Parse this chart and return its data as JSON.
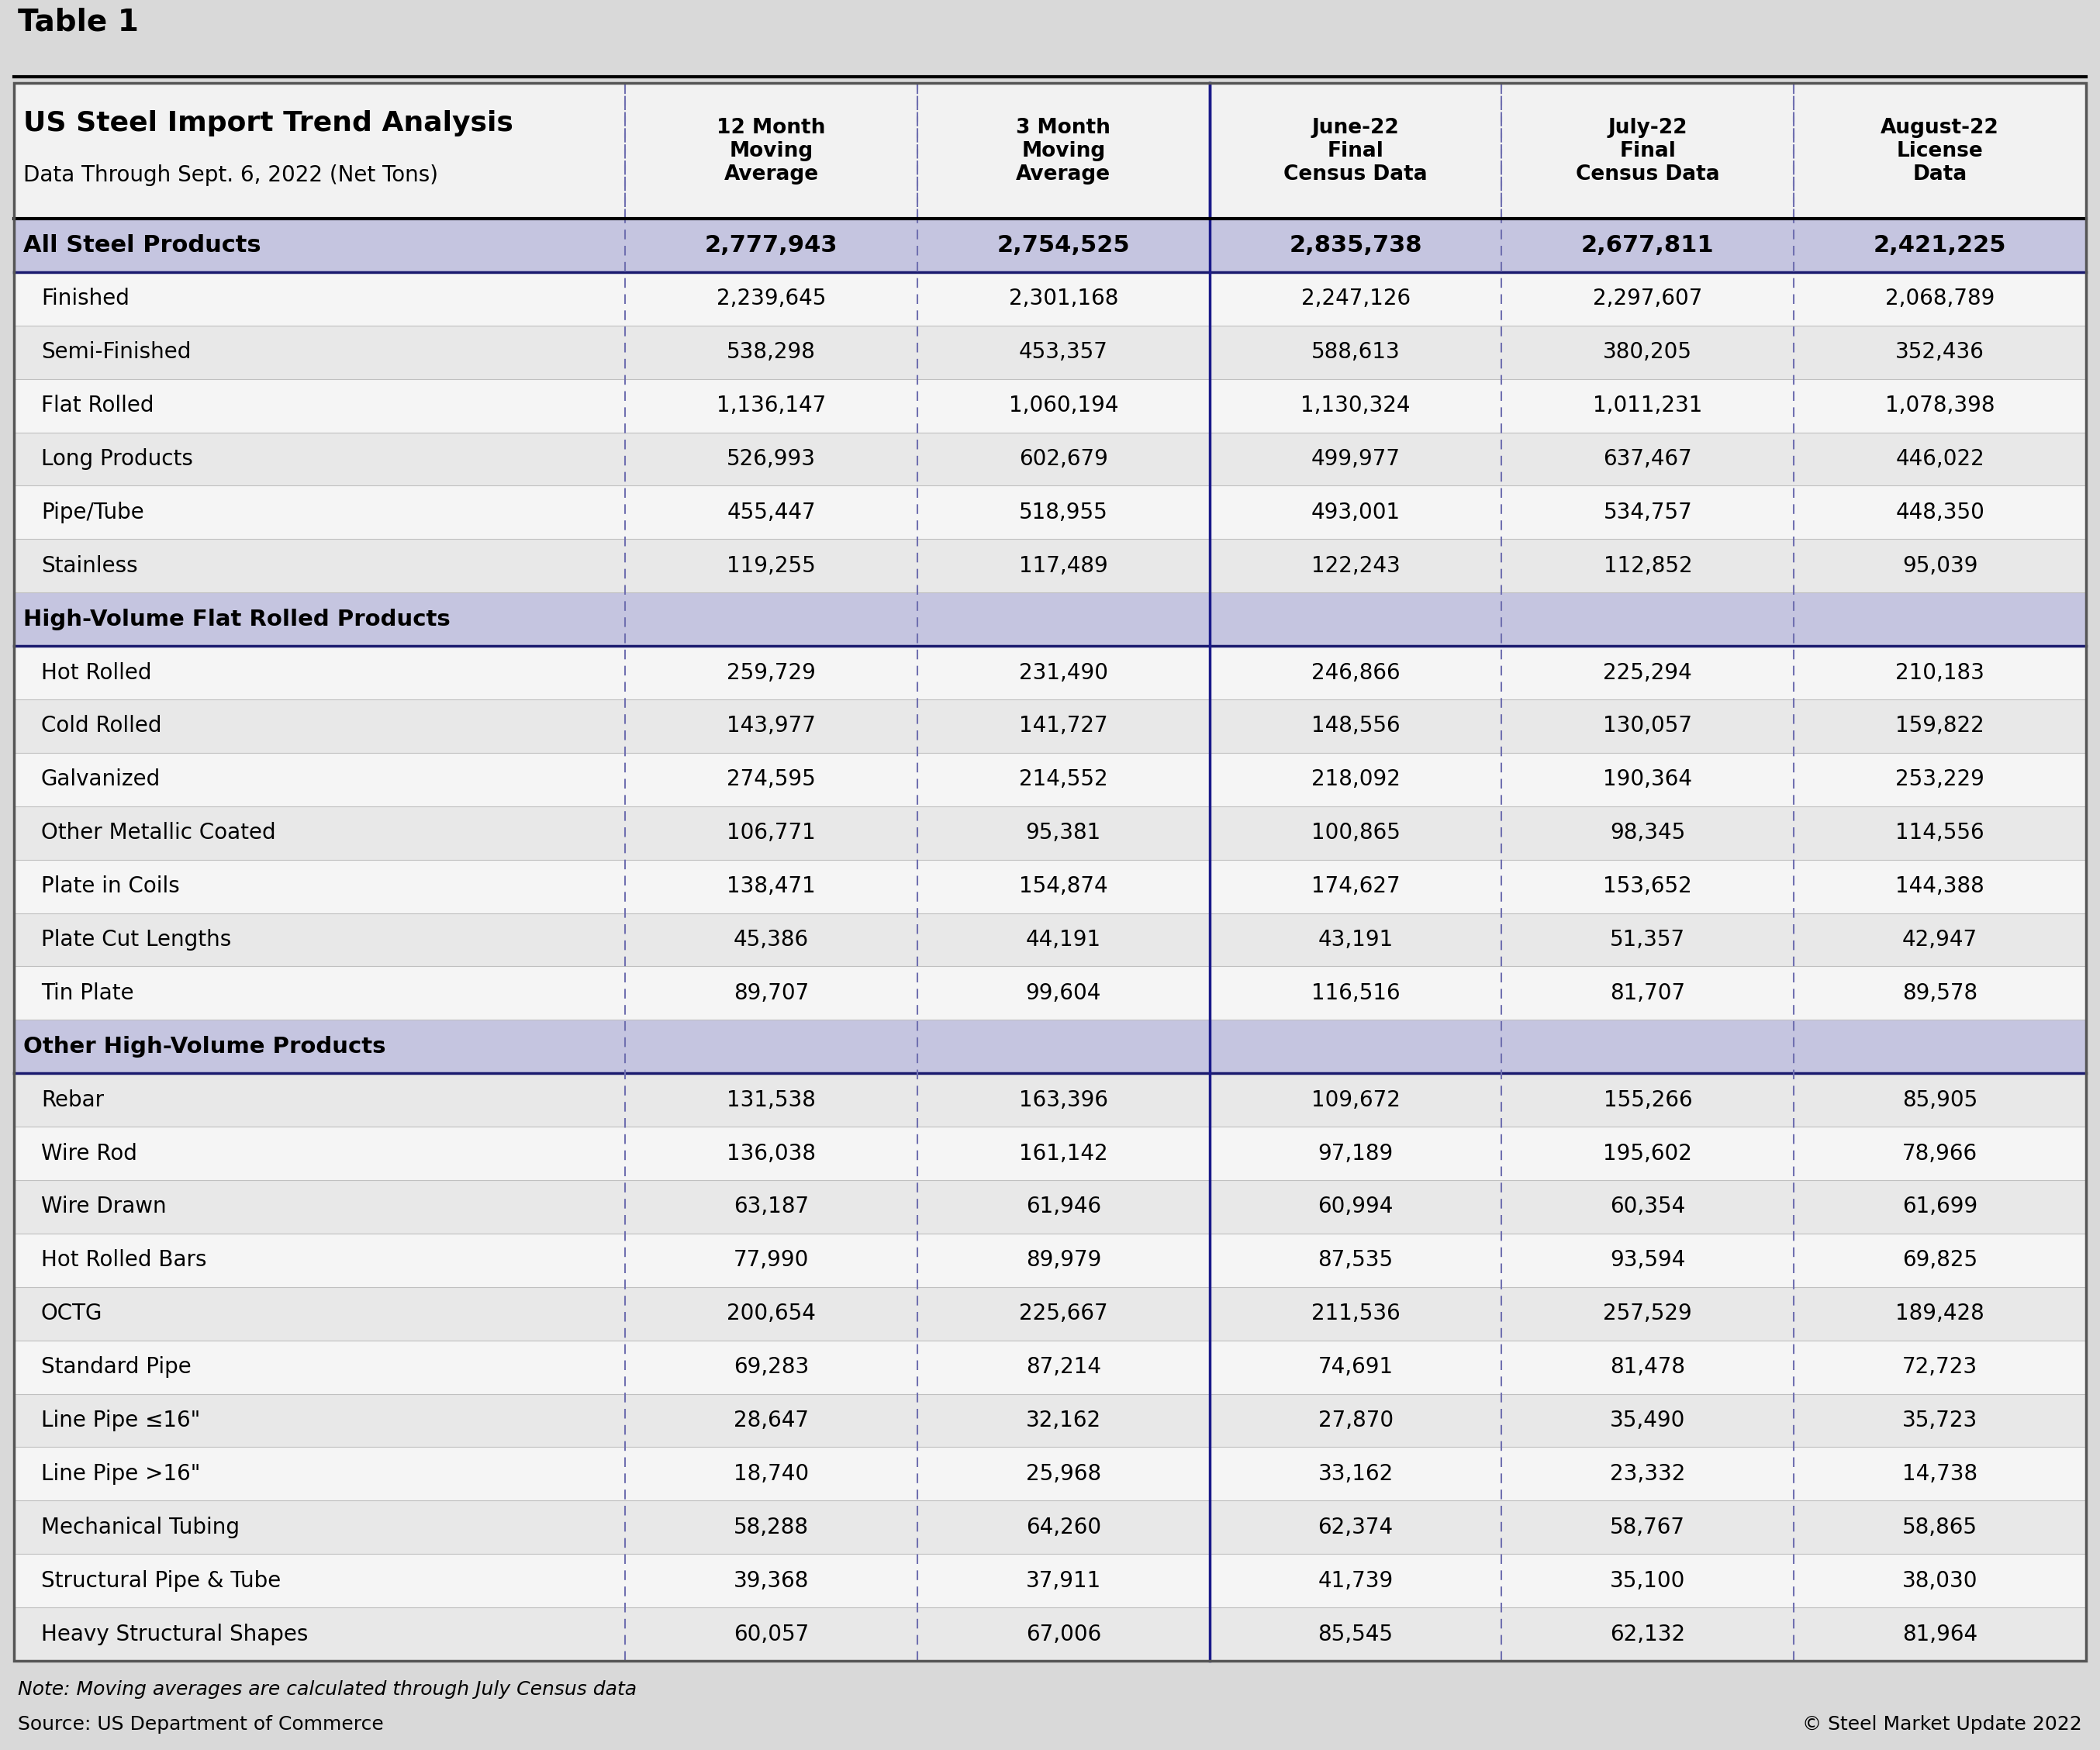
{
  "title_above": "Table 1",
  "title": "US Steel Import Trend Analysis",
  "subtitle": "Data Through Sept. 6, 2022 (Net Tons)",
  "note": "Note: Moving averages are calculated through July Census data",
  "source": "Source: US Department of Commerce",
  "copyright": "© Steel Market Update 2022",
  "col_headers": [
    "12 Month\nMoving\nAverage",
    "3 Month\nMoving\nAverage",
    "June-22\nFinal\nCensus Data",
    "July-22\nFinal\nCensus Data",
    "August-22\nLicense\nData"
  ],
  "rows": [
    {
      "label": "All Steel Products",
      "type": "total",
      "values": [
        "2,777,943",
        "2,754,525",
        "2,835,738",
        "2,677,811",
        "2,421,225"
      ]
    },
    {
      "label": "    Finished",
      "type": "normal",
      "values": [
        "2,239,645",
        "2,301,168",
        "2,247,126",
        "2,297,607",
        "2,068,789"
      ]
    },
    {
      "label": "    Semi-Finished",
      "type": "normal",
      "values": [
        "538,298",
        "453,357",
        "588,613",
        "380,205",
        "352,436"
      ]
    },
    {
      "label": "    Flat Rolled",
      "type": "normal",
      "values": [
        "1,136,147",
        "1,060,194",
        "1,130,324",
        "1,011,231",
        "1,078,398"
      ]
    },
    {
      "label": "    Long Products",
      "type": "normal",
      "values": [
        "526,993",
        "602,679",
        "499,977",
        "637,467",
        "446,022"
      ]
    },
    {
      "label": "    Pipe/Tube",
      "type": "normal",
      "values": [
        "455,447",
        "518,955",
        "493,001",
        "534,757",
        "448,350"
      ]
    },
    {
      "label": "    Stainless",
      "type": "normal",
      "values": [
        "119,255",
        "117,489",
        "122,243",
        "112,852",
        "95,039"
      ]
    },
    {
      "label": "High-Volume Flat Rolled Products",
      "type": "section",
      "values": [
        "",
        "",
        "",
        "",
        ""
      ]
    },
    {
      "label": "    Hot Rolled",
      "type": "normal",
      "values": [
        "259,729",
        "231,490",
        "246,866",
        "225,294",
        "210,183"
      ]
    },
    {
      "label": "    Cold Rolled",
      "type": "normal",
      "values": [
        "143,977",
        "141,727",
        "148,556",
        "130,057",
        "159,822"
      ]
    },
    {
      "label": "    Galvanized",
      "type": "normal",
      "values": [
        "274,595",
        "214,552",
        "218,092",
        "190,364",
        "253,229"
      ]
    },
    {
      "label": "    Other Metallic Coated",
      "type": "normal",
      "values": [
        "106,771",
        "95,381",
        "100,865",
        "98,345",
        "114,556"
      ]
    },
    {
      "label": "    Plate in Coils",
      "type": "normal",
      "values": [
        "138,471",
        "154,874",
        "174,627",
        "153,652",
        "144,388"
      ]
    },
    {
      "label": "    Plate Cut Lengths",
      "type": "normal",
      "values": [
        "45,386",
        "44,191",
        "43,191",
        "51,357",
        "42,947"
      ]
    },
    {
      "label": "    Tin Plate",
      "type": "normal",
      "values": [
        "89,707",
        "99,604",
        "116,516",
        "81,707",
        "89,578"
      ]
    },
    {
      "label": "Other High-Volume Products",
      "type": "section",
      "values": [
        "",
        "",
        "",
        "",
        ""
      ]
    },
    {
      "label": "    Rebar",
      "type": "normal",
      "values": [
        "131,538",
        "163,396",
        "109,672",
        "155,266",
        "85,905"
      ]
    },
    {
      "label": "    Wire Rod",
      "type": "normal",
      "values": [
        "136,038",
        "161,142",
        "97,189",
        "195,602",
        "78,966"
      ]
    },
    {
      "label": "    Wire Drawn",
      "type": "normal",
      "values": [
        "63,187",
        "61,946",
        "60,994",
        "60,354",
        "61,699"
      ]
    },
    {
      "label": "    Hot Rolled Bars",
      "type": "normal",
      "values": [
        "77,990",
        "89,979",
        "87,535",
        "93,594",
        "69,825"
      ]
    },
    {
      "label": "    OCTG",
      "type": "normal",
      "values": [
        "200,654",
        "225,667",
        "211,536",
        "257,529",
        "189,428"
      ]
    },
    {
      "label": "    Standard Pipe",
      "type": "normal",
      "values": [
        "69,283",
        "87,214",
        "74,691",
        "81,478",
        "72,723"
      ]
    },
    {
      "label": "    Line Pipe ≤16\"",
      "type": "normal",
      "values": [
        "28,647",
        "32,162",
        "27,870",
        "35,490",
        "35,723"
      ]
    },
    {
      "label": "    Line Pipe >16\"",
      "type": "normal",
      "values": [
        "18,740",
        "25,968",
        "33,162",
        "23,332",
        "14,738"
      ]
    },
    {
      "label": "    Mechanical Tubing",
      "type": "normal",
      "values": [
        "58,288",
        "64,260",
        "62,374",
        "58,767",
        "58,865"
      ]
    },
    {
      "label": "    Structural Pipe & Tube",
      "type": "normal",
      "values": [
        "39,368",
        "37,911",
        "41,739",
        "35,100",
        "38,030"
      ]
    },
    {
      "label": "    Heavy Structural Shapes",
      "type": "normal",
      "values": [
        "60,057",
        "67,006",
        "85,545",
        "62,132",
        "81,964"
      ]
    }
  ],
  "bg_color": "#d9d9d9",
  "table_bg": "#ffffff",
  "header_bg": "#f2f2f2",
  "total_bg": "#c5c5e0",
  "section_bg": "#c5c5e0",
  "normal_bg_light": "#f5f5f5",
  "normal_bg_mid": "#e8e8e8",
  "dashed_col_color": "#8888cc",
  "solid_col_color": "#2020a0",
  "outer_border": "#888888",
  "row_divider": "#cccccc",
  "total_divider": "#2020a080"
}
